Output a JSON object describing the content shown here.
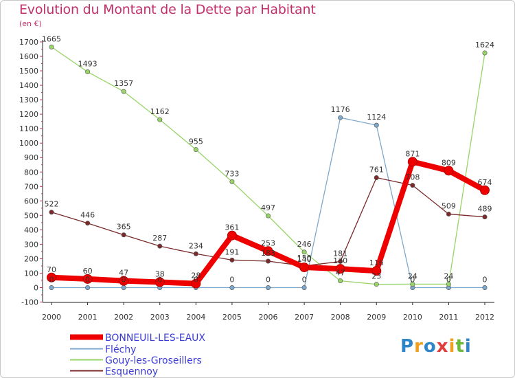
{
  "header": {
    "title": "Evolution du Montant de la Dette par Habitant",
    "unit": "(en €)"
  },
  "logo": {
    "letters": [
      "P",
      "r",
      "o",
      "x",
      "i",
      "t",
      "i"
    ],
    "colors": [
      "#2e86c8",
      "#f0a020",
      "#2e86c8",
      "#e03c3c",
      "#f0a020",
      "#6cb83c",
      "#2e86c8"
    ]
  },
  "chart_data": {
    "type": "line",
    "x": [
      "2000",
      "2001",
      "2002",
      "2003",
      "2004",
      "2005",
      "2006",
      "2007",
      "2008",
      "2009",
      "2010",
      "2011",
      "2012"
    ],
    "ylim": [
      -100,
      1700
    ],
    "yticks": [
      -100,
      0,
      100,
      200,
      300,
      400,
      500,
      600,
      700,
      800,
      900,
      1000,
      1100,
      1200,
      1300,
      1400,
      1500,
      1600,
      1700
    ],
    "grid": false,
    "legend_position": "bottom-left",
    "series": [
      {
        "name": "BONNEUIL-LES-EAUX",
        "color": "#ee0000",
        "bold": true,
        "values": [
          70,
          60,
          47,
          38,
          28,
          361,
          253,
          140,
          130,
          116,
          871,
          809,
          674
        ]
      },
      {
        "name": "Fléchy",
        "color": "#7da8cc",
        "values": [
          0,
          0,
          0,
          0,
          0,
          0,
          0,
          0,
          1176,
          1124,
          0,
          0,
          0
        ]
      },
      {
        "name": "Gouy-les-Groseillers",
        "color": "#98d468",
        "values": [
          1665,
          1493,
          1357,
          1162,
          955,
          733,
          497,
          246,
          47,
          23,
          24,
          24,
          1624
        ]
      },
      {
        "name": "Esquennoy",
        "color": "#7a2a2a",
        "values": [
          522,
          446,
          365,
          287,
          234,
          191,
          183,
          150,
          181,
          761,
          708,
          509,
          489
        ]
      }
    ]
  }
}
